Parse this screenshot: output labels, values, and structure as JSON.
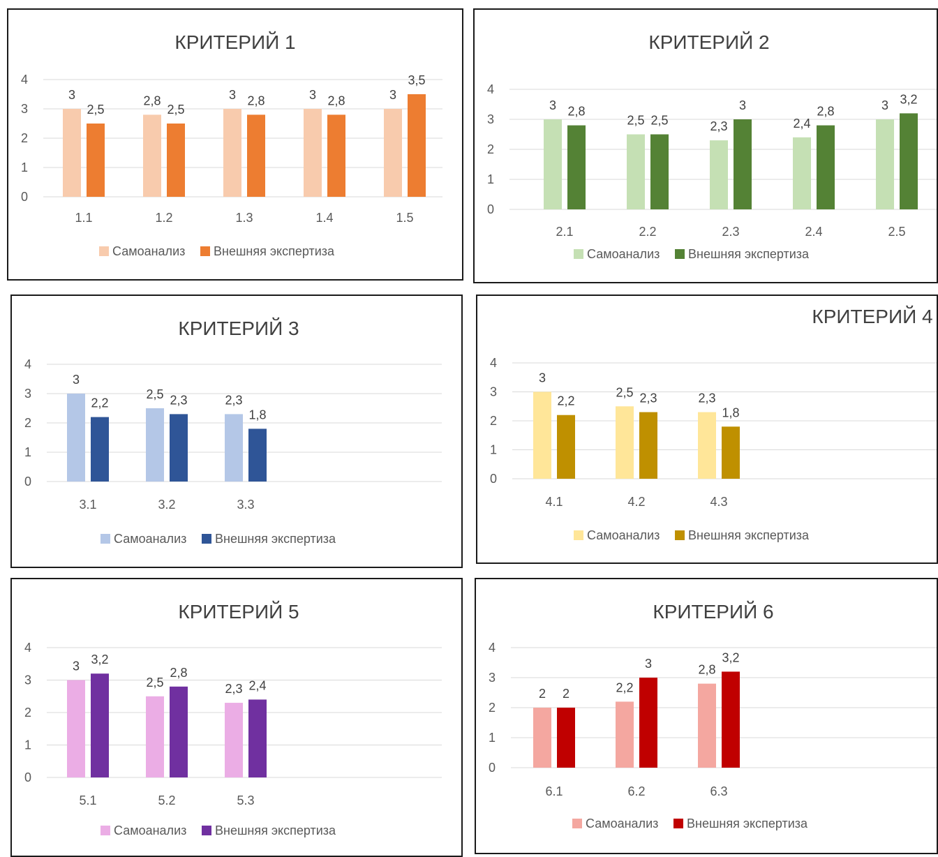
{
  "chart_data": [
    {
      "type": "bar",
      "title": "КРИТЕРИЙ 1",
      "categories": [
        "1.1",
        "1.2",
        "1.3",
        "1.4",
        "1.5"
      ],
      "series": [
        {
          "name": "Самоанализ",
          "color": "#F8CBAD",
          "values": [
            3,
            2.8,
            3,
            3,
            3
          ],
          "labels": [
            "3",
            "2,8",
            "3",
            "3",
            "3"
          ]
        },
        {
          "name": "Внешняя экспертиза",
          "color": "#ED7D31",
          "values": [
            2.5,
            2.5,
            2.8,
            2.8,
            3.5
          ],
          "labels": [
            "2,5",
            "2,5",
            "2,8",
            "2,8",
            "3,5"
          ]
        }
      ],
      "y_ticks": [
        "0",
        "1",
        "2",
        "3",
        "4"
      ],
      "ylim": [
        0,
        4
      ],
      "grid": true,
      "legend": "bottom"
    },
    {
      "type": "bar",
      "title": "КРИТЕРИЙ 2",
      "categories": [
        "2.1",
        "2.2",
        "2.3",
        "2.4",
        "2.5"
      ],
      "series": [
        {
          "name": "Самоанализ",
          "color": "#C5E0B4",
          "values": [
            3,
            2.5,
            2.3,
            2.4,
            3
          ],
          "labels": [
            "3",
            "2,5",
            "2,3",
            "2,4",
            "3"
          ]
        },
        {
          "name": "Внешняя экспертиза",
          "color": "#548235",
          "values": [
            2.8,
            2.5,
            3,
            2.8,
            3.2
          ],
          "labels": [
            "2,8",
            "2,5",
            "3",
            "2,8",
            "3,2"
          ]
        }
      ],
      "y_ticks": [
        "0",
        "1",
        "2",
        "3",
        "4"
      ],
      "ylim": [
        0,
        4
      ],
      "grid": true,
      "legend": "bottom"
    },
    {
      "type": "bar",
      "title": "КРИТЕРИЙ 3",
      "categories": [
        "3.1",
        "3.2",
        "3.3"
      ],
      "series": [
        {
          "name": "Самоанализ",
          "color": "#B4C7E7",
          "values": [
            3,
            2.5,
            2.3
          ],
          "labels": [
            "3",
            "2,5",
            "2,3"
          ]
        },
        {
          "name": "Внешняя экспертиза",
          "color": "#2F5597",
          "values": [
            2.2,
            2.3,
            1.8
          ],
          "labels": [
            "2,2",
            "2,3",
            "1,8"
          ]
        }
      ],
      "y_ticks": [
        "0",
        "1",
        "2",
        "3",
        "4"
      ],
      "ylim": [
        0,
        4
      ],
      "grid": true,
      "legend": "bottom"
    },
    {
      "type": "bar",
      "title": "КРИТЕРИЙ 4",
      "categories": [
        "4.1",
        "4.2",
        "4.3"
      ],
      "series": [
        {
          "name": "Самоанализ",
          "color": "#FFE699",
          "values": [
            3,
            2.5,
            2.3
          ],
          "labels": [
            "3",
            "2,5",
            "2,3"
          ]
        },
        {
          "name": "Внешняя экспертиза",
          "color": "#BF9000",
          "values": [
            2.2,
            2.3,
            1.8
          ],
          "labels": [
            "2,2",
            "2,3",
            "1,8"
          ]
        }
      ],
      "y_ticks": [
        "0",
        "1",
        "2",
        "3",
        "4"
      ],
      "ylim": [
        0,
        4
      ],
      "grid": true,
      "legend": "bottom"
    },
    {
      "type": "bar",
      "title": "КРИТЕРИЙ 5",
      "categories": [
        "5.1",
        "5.2",
        "5.3"
      ],
      "series": [
        {
          "name": "Самоанализ",
          "color": "#EBADE5",
          "values": [
            3,
            2.5,
            2.3
          ],
          "labels": [
            "3",
            "2,5",
            "2,3"
          ]
        },
        {
          "name": "Внешняя экспертиза",
          "color": "#7030A0",
          "values": [
            3.2,
            2.8,
            2.4
          ],
          "labels": [
            "3,2",
            "2,8",
            "2,4"
          ]
        }
      ],
      "y_ticks": [
        "0",
        "1",
        "2",
        "3",
        "4"
      ],
      "ylim": [
        0,
        4
      ],
      "grid": true,
      "legend": "bottom"
    },
    {
      "type": "bar",
      "title": "КРИТЕРИЙ 6",
      "categories": [
        "6.1",
        "6.2",
        "6.3"
      ],
      "series": [
        {
          "name": "Самоанализ",
          "color": "#F4A7A0",
          "values": [
            2,
            2.2,
            2.8
          ],
          "labels": [
            "2",
            "2,2",
            "2,8"
          ]
        },
        {
          "name": "Внешняя экспертиза",
          "color": "#C00000",
          "values": [
            2,
            3,
            3.2
          ],
          "labels": [
            "2",
            "3",
            "3,2"
          ]
        }
      ],
      "y_ticks": [
        "0",
        "1",
        "2",
        "3",
        "4"
      ],
      "ylim": [
        0,
        4
      ],
      "grid": true,
      "legend": "bottom"
    }
  ]
}
